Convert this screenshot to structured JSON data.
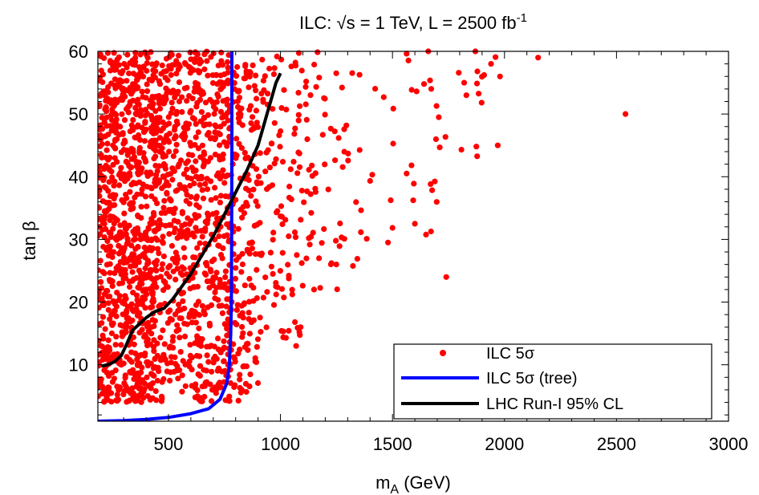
{
  "chart_data": {
    "type": "scatter",
    "title_parts": {
      "prefix": "ILC: ",
      "sqrt": "√",
      "middle": "s = 1 TeV, L = 2500 fb",
      "sup": "-1"
    },
    "xlabel": {
      "base": "m",
      "sub": "A",
      "rest": " (GeV)"
    },
    "ylabel": {
      "base": "tan ",
      "greek": "β"
    },
    "xlim": [
      185,
      3000
    ],
    "ylim": [
      1,
      60
    ],
    "xticks": [
      500,
      1000,
      1500,
      2000,
      2500,
      3000
    ],
    "yticks": [
      10,
      20,
      30,
      40,
      50,
      60
    ],
    "grid": false,
    "legend_position": "bottom-right",
    "colors": {
      "points": "#ff0000",
      "tree": "#0000ff",
      "lhc": "#000000"
    },
    "series": [
      {
        "name": "ILC 5σ",
        "legend_parts": {
          "text": "ILC 5",
          "greek": "σ",
          "rest": ""
        },
        "kind": "points",
        "color": "#ff0000",
        "region_density": [
          {
            "x": [
              185,
              450
            ],
            "y": [
              4,
              60
            ],
            "n": 900
          },
          {
            "x": [
              450,
              780
            ],
            "y": [
              4,
              60
            ],
            "n": 700
          },
          {
            "x": [
              780,
              900
            ],
            "y": [
              4,
              58
            ],
            "n": 170
          },
          {
            "x": [
              900,
              1100
            ],
            "y": [
              13,
              60
            ],
            "n": 110
          },
          {
            "x": [
              1100,
              1350
            ],
            "y": [
              22,
              60
            ],
            "n": 60
          },
          {
            "x": [
              1350,
              1700
            ],
            "y": [
              30,
              60
            ],
            "n": 32
          },
          {
            "x": [
              1700,
              2000
            ],
            "y": [
              42,
              60
            ],
            "n": 14
          }
        ],
        "x": [
          2540,
          2150,
          1970,
          1980,
          1740,
          1480,
          1600,
          1150,
          1090,
          1070,
          1660,
          1820,
          1940,
          1830,
          1870
        ],
        "y": [
          50,
          59,
          45,
          56,
          24,
          29.5,
          32.5,
          22,
          16,
          13,
          60,
          55,
          58,
          53,
          60
        ]
      },
      {
        "name": "ILC 5σ (tree)",
        "legend_parts": {
          "text": "ILC 5",
          "greek": "σ",
          "rest": " (tree)"
        },
        "kind": "line",
        "color": "#0000ff",
        "x": [
          185,
          300,
          400,
          500,
          600,
          680,
          730,
          760,
          772,
          778,
          781,
          782,
          783,
          783
        ],
        "y": [
          1.0,
          1.1,
          1.3,
          1.6,
          2.2,
          3.0,
          4.5,
          7,
          10,
          15,
          20,
          30,
          45,
          60
        ]
      },
      {
        "name": "LHC Run-I 95% CL",
        "legend_parts": {
          "text": "LHC Run-I 95% CL",
          "greek": "",
          "rest": ""
        },
        "kind": "line",
        "color": "#000000",
        "x": [
          200,
          230,
          260,
          290,
          310,
          340,
          370,
          400,
          440,
          480,
          520,
          560,
          600,
          650,
          700,
          750,
          800,
          850,
          900,
          940,
          980,
          1000
        ],
        "y": [
          9.8,
          10,
          10.5,
          11.5,
          13,
          15.5,
          16.5,
          17.5,
          18.5,
          19,
          20.5,
          22.5,
          24.5,
          27.5,
          30.5,
          34,
          37.5,
          41,
          45,
          50,
          55,
          56.5
        ]
      }
    ]
  }
}
